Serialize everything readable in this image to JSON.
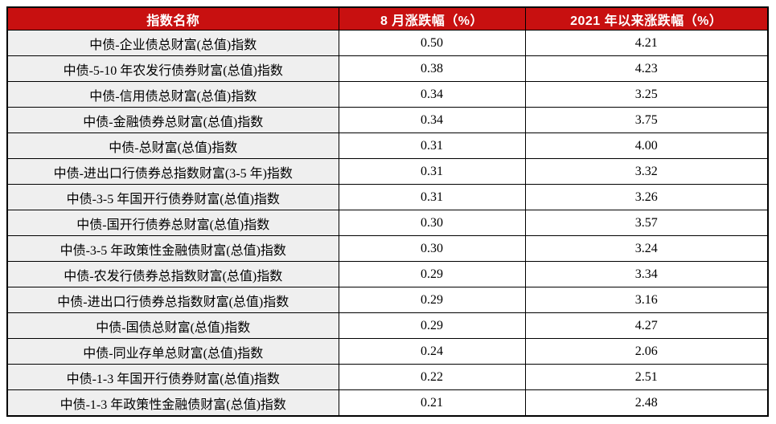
{
  "colors": {
    "header_bg": "#C81010",
    "header_text": "#FFFFFF",
    "name_column_bg": "#EFEFEF",
    "value_column_bg": "#FFFFFF",
    "border": "#000000"
  },
  "table": {
    "columns": [
      {
        "label": "指数名称"
      },
      {
        "label": "8 月涨跌幅（%）"
      },
      {
        "label": "2021 年以来涨跌幅（%）"
      }
    ],
    "rows": [
      {
        "name": "中债-企业债总财富(总值)指数",
        "aug_change": "0.50",
        "ytd_change": "4.21"
      },
      {
        "name": "中债-5-10 年农发行债券财富(总值)指数",
        "aug_change": "0.38",
        "ytd_change": "4.23"
      },
      {
        "name": "中债-信用债总财富(总值)指数",
        "aug_change": "0.34",
        "ytd_change": "3.25"
      },
      {
        "name": "中债-金融债券总财富(总值)指数",
        "aug_change": "0.34",
        "ytd_change": "3.75"
      },
      {
        "name": "中债-总财富(总值)指数",
        "aug_change": "0.31",
        "ytd_change": "4.00"
      },
      {
        "name": "中债-进出口行债券总指数财富(3-5 年)指数",
        "aug_change": "0.31",
        "ytd_change": "3.32"
      },
      {
        "name": "中债-3-5 年国开行债券财富(总值)指数",
        "aug_change": "0.31",
        "ytd_change": "3.26"
      },
      {
        "name": "中债-国开行债券总财富(总值)指数",
        "aug_change": "0.30",
        "ytd_change": "3.57"
      },
      {
        "name": "中债-3-5 年政策性金融债财富(总值)指数",
        "aug_change": "0.30",
        "ytd_change": "3.24"
      },
      {
        "name": "中债-农发行债券总指数财富(总值)指数",
        "aug_change": "0.29",
        "ytd_change": "3.34"
      },
      {
        "name": "中债-进出口行债券总指数财富(总值)指数",
        "aug_change": "0.29",
        "ytd_change": "3.16"
      },
      {
        "name": "中债-国债总财富(总值)指数",
        "aug_change": "0.29",
        "ytd_change": "4.27"
      },
      {
        "name": "中债-同业存单总财富(总值)指数",
        "aug_change": "0.24",
        "ytd_change": "2.06"
      },
      {
        "name": "中债-1-3 年国开行债券财富(总值)指数",
        "aug_change": "0.22",
        "ytd_change": "2.51"
      },
      {
        "name": "中债-1-3 年政策性金融债财富(总值)指数",
        "aug_change": "0.21",
        "ytd_change": "2.48"
      }
    ]
  },
  "chart_data": {
    "type": "table",
    "title": "",
    "columns": [
      "指数名称",
      "8 月涨跌幅（%）",
      "2021 年以来涨跌幅（%）"
    ],
    "categories": [
      "中债-企业债总财富(总值)指数",
      "中债-5-10 年农发行债券财富(总值)指数",
      "中债-信用债总财富(总值)指数",
      "中债-金融债券总财富(总值)指数",
      "中债-总财富(总值)指数",
      "中债-进出口行债券总指数财富(3-5 年)指数",
      "中债-3-5 年国开行债券财富(总值)指数",
      "中债-国开行债券总财富(总值)指数",
      "中债-3-5 年政策性金融债财富(总值)指数",
      "中债-农发行债券总指数财富(总值)指数",
      "中债-进出口行债券总指数财富(总值)指数",
      "中债-国债总财富(总值)指数",
      "中债-同业存单总财富(总值)指数",
      "中债-1-3 年国开行债券财富(总值)指数",
      "中债-1-3 年政策性金融债财富(总值)指数"
    ],
    "series": [
      {
        "name": "8 月涨跌幅（%）",
        "values": [
          0.5,
          0.38,
          0.34,
          0.34,
          0.31,
          0.31,
          0.31,
          0.3,
          0.3,
          0.29,
          0.29,
          0.29,
          0.24,
          0.22,
          0.21
        ]
      },
      {
        "name": "2021 年以来涨跌幅（%）",
        "values": [
          4.21,
          4.23,
          3.25,
          3.75,
          4.0,
          3.32,
          3.26,
          3.57,
          3.24,
          3.34,
          3.16,
          4.27,
          2.06,
          2.51,
          2.48
        ]
      }
    ]
  }
}
